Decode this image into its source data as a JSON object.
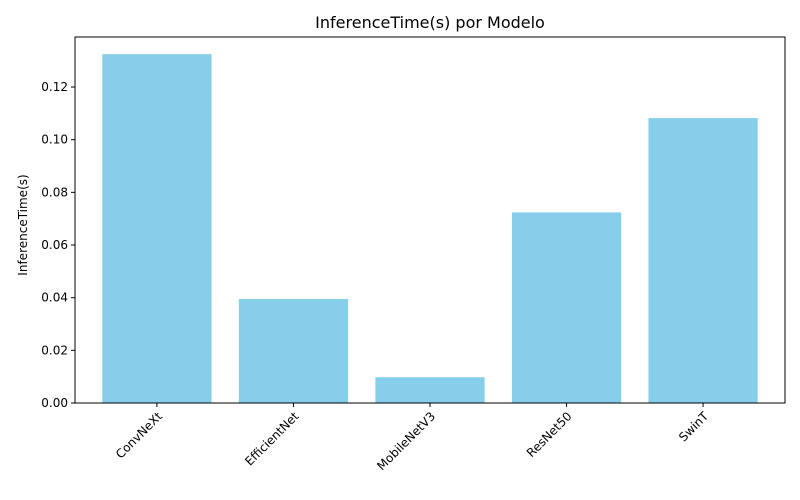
{
  "chart_data": {
    "type": "bar",
    "title": "InferenceTime(s) por Modelo",
    "xlabel": "",
    "ylabel": "InferenceTime(s)",
    "categories": [
      "ConvNeXt",
      "EfficientNet",
      "MobileNetV3",
      "ResNet50",
      "SwinT"
    ],
    "values": [
      0.1325,
      0.0395,
      0.0098,
      0.0724,
      0.1082
    ],
    "ylim": [
      0,
      0.139
    ],
    "yticks": [
      "0.00",
      "0.02",
      "0.04",
      "0.06",
      "0.08",
      "0.10",
      "0.12"
    ],
    "bar_color": "#87ceeb",
    "grid": false,
    "xtick_rotation": 45
  }
}
